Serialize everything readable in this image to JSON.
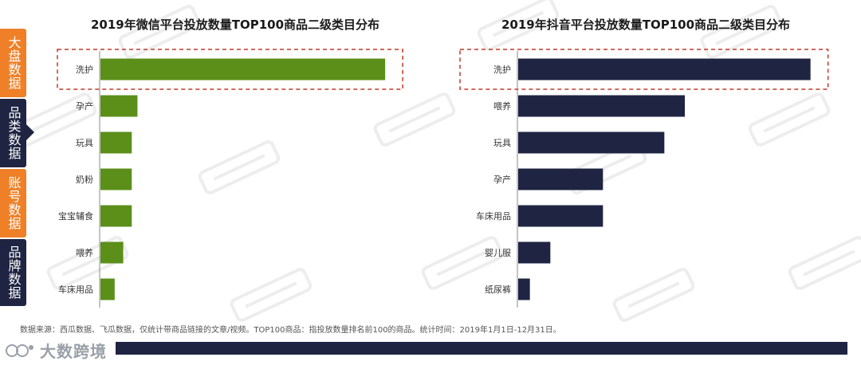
{
  "nav": {
    "items": [
      {
        "label": "大盘数据",
        "color": "#ef8028"
      },
      {
        "label": "品类数据",
        "color": "#1f2442"
      },
      {
        "label": "账号数据",
        "color": "#ef8028"
      },
      {
        "label": "品牌数据",
        "color": "#1f2442"
      }
    ]
  },
  "chart_data": [
    {
      "type": "bar",
      "orientation": "horizontal",
      "title": "2019年微信平台投放数量TOP100商品二级类目分布",
      "categories": [
        "洗护",
        "孕产",
        "玩具",
        "奶粉",
        "宝宝辅食",
        "喂养",
        "车床用品"
      ],
      "values": [
        100,
        13,
        11,
        11,
        11,
        8,
        5
      ],
      "xlim": [
        0,
        105
      ],
      "color": "#5b8f1a",
      "highlight": "洗护",
      "grid": false,
      "legend": "none"
    },
    {
      "type": "bar",
      "orientation": "horizontal",
      "title": "2019年抖音平台投放数量TOP100商品二级类目分布",
      "categories": [
        "洗护",
        "喂养",
        "玩具",
        "孕产",
        "车床用品",
        "婴儿服",
        "纸尿裤"
      ],
      "values": [
        100,
        57,
        50,
        29,
        29,
        11,
        4
      ],
      "xlim": [
        0,
        105
      ],
      "color": "#1f2442",
      "highlight": "洗护",
      "grid": false,
      "legend": "none"
    }
  ],
  "footnote": "数据来源：西瓜数据、飞瓜数据，仅统计带商品链接的文章/视频。TOP100商品：指投放数量排名前100的商品。统计时间：2019年1月1日-12月31日。",
  "brand": {
    "text": "大数跨境",
    "logo": "brand-logo-icon"
  },
  "colors": {
    "highlight_box": "#c0392b",
    "footer_bar": "#1f2442",
    "axis": "#888888"
  }
}
